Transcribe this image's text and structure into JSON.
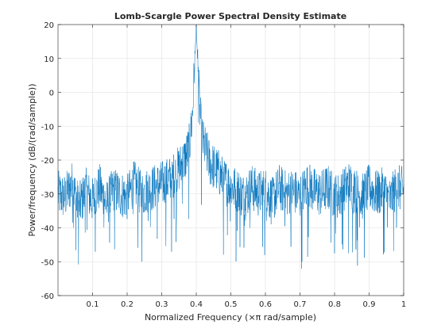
{
  "chart_data": {
    "type": "line",
    "title": "Lomb-Scargle Power Spectral Density Estimate",
    "xlabel": "Normalized Frequency  (×π rad/sample)",
    "ylabel": "Power/frequency (dB/(rad/sample))",
    "xlim": [
      0,
      1
    ],
    "ylim": [
      -60,
      20
    ],
    "xticks": [
      0.1,
      0.2,
      0.3,
      0.4,
      0.5,
      0.6,
      0.7,
      0.8,
      0.9,
      1
    ],
    "xtick_labels": [
      "0.1",
      "0.2",
      "0.3",
      "0.4",
      "0.5",
      "0.6",
      "0.7",
      "0.8",
      "0.9",
      "1"
    ],
    "yticks": [
      -60,
      -50,
      -40,
      -30,
      -20,
      -10,
      0,
      10,
      20
    ],
    "ytick_labels": [
      "-60",
      "-50",
      "-40",
      "-30",
      "-20",
      "-10",
      "0",
      "10",
      "20"
    ],
    "grid": true,
    "color": "#0072BD",
    "x": [
      0.0,
      0.02,
      0.04,
      0.06,
      0.08,
      0.1,
      0.12,
      0.14,
      0.16,
      0.18,
      0.2,
      0.22,
      0.24,
      0.26,
      0.28,
      0.3,
      0.32,
      0.34,
      0.36,
      0.37,
      0.38,
      0.385,
      0.39,
      0.395,
      0.4,
      0.405,
      0.41,
      0.415,
      0.42,
      0.43,
      0.44,
      0.46,
      0.48,
      0.5,
      0.52,
      0.54,
      0.56,
      0.58,
      0.6,
      0.62,
      0.64,
      0.66,
      0.68,
      0.7,
      0.72,
      0.74,
      0.76,
      0.78,
      0.8,
      0.82,
      0.84,
      0.86,
      0.88,
      0.9,
      0.92,
      0.94,
      0.96,
      0.98,
      1.0
    ],
    "y": [
      -30,
      -31,
      -27,
      -34,
      -29,
      -32,
      -28,
      -33,
      -29,
      -30,
      -31,
      -27,
      -30,
      -29,
      -28,
      -27,
      -26,
      -24,
      -21,
      -19,
      -16,
      -11,
      -5,
      8,
      20,
      6,
      -5,
      -11,
      -15,
      -18,
      -21,
      -23,
      -26,
      -28,
      -29,
      -31,
      -28,
      -30,
      -29,
      -32,
      -28,
      -30,
      -29,
      -31,
      -27,
      -29,
      -30,
      -28,
      -31,
      -30,
      -27,
      -29,
      -31,
      -28,
      -30,
      -29,
      -32,
      -28,
      -29
    ]
  }
}
